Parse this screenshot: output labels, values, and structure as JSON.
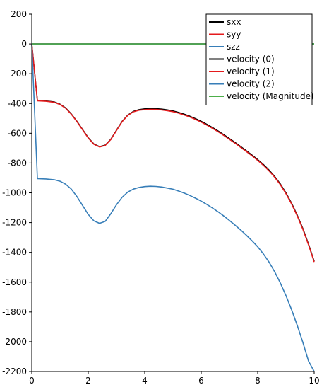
{
  "chart_data": {
    "type": "line",
    "title": "",
    "xlabel": "",
    "ylabel": "",
    "xlim": [
      0,
      10
    ],
    "ylim": [
      -2200,
      200
    ],
    "x_ticks": [
      "0",
      "2",
      "4",
      "6",
      "8",
      "10"
    ],
    "y_ticks": [
      "200",
      "0",
      "-200",
      "-400",
      "-600",
      "-800",
      "-1000",
      "-1200",
      "-1400",
      "-1600",
      "-1800",
      "-2000",
      "-2200"
    ],
    "grid": false,
    "legend_position": "top-right",
    "series": [
      {
        "name": "sxx",
        "color": "#000000",
        "points": [
          [
            0,
            0
          ],
          [
            0.2,
            -380
          ],
          [
            0.5,
            -383
          ],
          [
            0.8,
            -390
          ],
          [
            1.0,
            -405
          ],
          [
            1.2,
            -430
          ],
          [
            1.4,
            -470
          ],
          [
            1.6,
            -520
          ],
          [
            1.8,
            -575
          ],
          [
            2.0,
            -630
          ],
          [
            2.2,
            -672
          ],
          [
            2.4,
            -690
          ],
          [
            2.6,
            -680
          ],
          [
            2.8,
            -640
          ],
          [
            3.0,
            -580
          ],
          [
            3.2,
            -520
          ],
          [
            3.4,
            -478
          ],
          [
            3.6,
            -453
          ],
          [
            3.8,
            -441
          ],
          [
            4.0,
            -436
          ],
          [
            4.2,
            -434
          ],
          [
            4.4,
            -435
          ],
          [
            4.6,
            -438
          ],
          [
            4.8,
            -443
          ],
          [
            5.0,
            -450
          ],
          [
            5.2,
            -460
          ],
          [
            5.4,
            -472
          ],
          [
            5.6,
            -486
          ],
          [
            5.8,
            -502
          ],
          [
            6.0,
            -520
          ],
          [
            6.2,
            -540
          ],
          [
            6.4,
            -562
          ],
          [
            6.6,
            -585
          ],
          [
            6.8,
            -610
          ],
          [
            7.0,
            -636
          ],
          [
            7.2,
            -662
          ],
          [
            7.4,
            -690
          ],
          [
            7.6,
            -718
          ],
          [
            7.8,
            -747
          ],
          [
            8.0,
            -777
          ],
          [
            8.2,
            -810
          ],
          [
            8.4,
            -847
          ],
          [
            8.6,
            -890
          ],
          [
            8.8,
            -940
          ],
          [
            9.0,
            -1000
          ],
          [
            9.2,
            -1070
          ],
          [
            9.4,
            -1150
          ],
          [
            9.6,
            -1240
          ],
          [
            9.8,
            -1345
          ],
          [
            10.0,
            -1460
          ]
        ]
      },
      {
        "name": "syy",
        "color": "#e41a1c",
        "points": [
          [
            0,
            0
          ],
          [
            0.2,
            -382
          ],
          [
            0.5,
            -385
          ],
          [
            0.8,
            -392
          ],
          [
            1.0,
            -407
          ],
          [
            1.2,
            -432
          ],
          [
            1.4,
            -472
          ],
          [
            1.6,
            -522
          ],
          [
            1.8,
            -577
          ],
          [
            2.0,
            -632
          ],
          [
            2.2,
            -674
          ],
          [
            2.4,
            -692
          ],
          [
            2.6,
            -682
          ],
          [
            2.8,
            -642
          ],
          [
            3.0,
            -582
          ],
          [
            3.2,
            -522
          ],
          [
            3.4,
            -480
          ],
          [
            3.6,
            -456
          ],
          [
            3.8,
            -445
          ],
          [
            4.0,
            -441
          ],
          [
            4.2,
            -439
          ],
          [
            4.4,
            -440
          ],
          [
            4.6,
            -443
          ],
          [
            4.8,
            -448
          ],
          [
            5.0,
            -455
          ],
          [
            5.2,
            -465
          ],
          [
            5.4,
            -477
          ],
          [
            5.6,
            -491
          ],
          [
            5.8,
            -507
          ],
          [
            6.0,
            -525
          ],
          [
            6.2,
            -545
          ],
          [
            6.4,
            -567
          ],
          [
            6.6,
            -590
          ],
          [
            6.8,
            -615
          ],
          [
            7.0,
            -641
          ],
          [
            7.2,
            -667
          ],
          [
            7.4,
            -695
          ],
          [
            7.6,
            -723
          ],
          [
            7.8,
            -752
          ],
          [
            8.0,
            -782
          ],
          [
            8.2,
            -815
          ],
          [
            8.4,
            -852
          ],
          [
            8.6,
            -895
          ],
          [
            8.8,
            -945
          ],
          [
            9.0,
            -1005
          ],
          [
            9.2,
            -1075
          ],
          [
            9.4,
            -1155
          ],
          [
            9.6,
            -1245
          ],
          [
            9.8,
            -1350
          ],
          [
            10.0,
            -1465
          ]
        ]
      },
      {
        "name": "szz",
        "color": "#377eb8",
        "points": [
          [
            0,
            0
          ],
          [
            0.2,
            -905
          ],
          [
            0.5,
            -907
          ],
          [
            0.8,
            -912
          ],
          [
            1.0,
            -922
          ],
          [
            1.2,
            -942
          ],
          [
            1.4,
            -975
          ],
          [
            1.6,
            -1025
          ],
          [
            1.8,
            -1085
          ],
          [
            2.0,
            -1145
          ],
          [
            2.2,
            -1188
          ],
          [
            2.4,
            -1205
          ],
          [
            2.6,
            -1192
          ],
          [
            2.8,
            -1140
          ],
          [
            3.0,
            -1080
          ],
          [
            3.2,
            -1030
          ],
          [
            3.4,
            -995
          ],
          [
            3.6,
            -975
          ],
          [
            3.8,
            -964
          ],
          [
            4.0,
            -958
          ],
          [
            4.2,
            -956
          ],
          [
            4.4,
            -957
          ],
          [
            4.6,
            -961
          ],
          [
            4.8,
            -968
          ],
          [
            5.0,
            -976
          ],
          [
            5.2,
            -988
          ],
          [
            5.4,
            -1002
          ],
          [
            5.6,
            -1018
          ],
          [
            5.8,
            -1036
          ],
          [
            6.0,
            -1056
          ],
          [
            6.2,
            -1078
          ],
          [
            6.4,
            -1102
          ],
          [
            6.6,
            -1128
          ],
          [
            6.8,
            -1156
          ],
          [
            7.0,
            -1186
          ],
          [
            7.2,
            -1217
          ],
          [
            7.4,
            -1250
          ],
          [
            7.6,
            -1285
          ],
          [
            7.8,
            -1322
          ],
          [
            8.0,
            -1362
          ],
          [
            8.2,
            -1410
          ],
          [
            8.4,
            -1465
          ],
          [
            8.6,
            -1530
          ],
          [
            8.8,
            -1605
          ],
          [
            9.0,
            -1690
          ],
          [
            9.2,
            -1785
          ],
          [
            9.4,
            -1890
          ],
          [
            9.6,
            -2005
          ],
          [
            9.8,
            -2130
          ],
          [
            10.0,
            -2265
          ]
        ]
      },
      {
        "name": "velocity (0)",
        "color": "#000000",
        "points": [
          [
            0,
            0
          ],
          [
            2,
            0
          ],
          [
            4,
            0
          ],
          [
            6,
            0
          ],
          [
            8,
            0
          ],
          [
            10,
            0
          ]
        ]
      },
      {
        "name": "velocity (1)",
        "color": "#e41a1c",
        "points": [
          [
            0,
            0
          ],
          [
            2,
            0
          ],
          [
            4,
            0
          ],
          [
            6,
            0
          ],
          [
            8,
            0
          ],
          [
            10,
            0
          ]
        ]
      },
      {
        "name": "velocity (2)",
        "color": "#377eb8",
        "points": [
          [
            0,
            0
          ],
          [
            2,
            0
          ],
          [
            4,
            0
          ],
          [
            6,
            0
          ],
          [
            8,
            0
          ],
          [
            10,
            0
          ]
        ]
      },
      {
        "name": "velocity (Magnitude)",
        "color": "#4daf4a",
        "points": [
          [
            0,
            0
          ],
          [
            2,
            0
          ],
          [
            4,
            0
          ],
          [
            6,
            0
          ],
          [
            8,
            0
          ],
          [
            10,
            0
          ]
        ]
      }
    ]
  }
}
